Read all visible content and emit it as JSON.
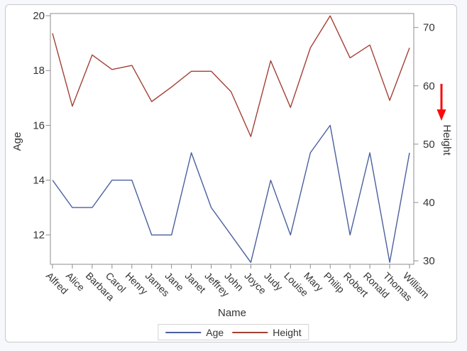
{
  "window": {
    "background_color": "#f7f8fc",
    "card_border_color": "#c9c9cb"
  },
  "text_color": "#333333",
  "axis_color": "#8e8e8e",
  "chart_data": {
    "type": "line",
    "title": "",
    "categories": [
      "Alfred",
      "Alice",
      "Barbara",
      "Carol",
      "Henry",
      "James",
      "Jane",
      "Janet",
      "Jeffrey",
      "John",
      "Joyce",
      "Judy",
      "Louise",
      "Mary",
      "Philip",
      "Robert",
      "Ronald",
      "Thomas",
      "William"
    ],
    "series": [
      {
        "name": "Age",
        "axis": "left",
        "color": "#4a5f9d",
        "values": [
          14,
          13,
          13,
          14,
          14,
          12,
          12,
          15,
          13,
          12,
          11,
          14,
          12,
          15,
          16,
          12,
          15,
          11,
          15
        ]
      },
      {
        "name": "Height",
        "axis": "right",
        "color": "#a24035",
        "values": [
          69,
          56.5,
          65.3,
          62.8,
          63.5,
          57.3,
          59.8,
          62.5,
          62.5,
          59,
          51.3,
          64.3,
          56.3,
          66.5,
          72,
          64.8,
          67,
          57.5,
          66.5
        ]
      }
    ],
    "xlabel": "Name",
    "ylabel_left": "Age",
    "ylabel_right": "Height",
    "left_axis": {
      "ticks": [
        12,
        14,
        16,
        18,
        20
      ],
      "range": [
        10.93,
        20.08
      ]
    },
    "right_axis": {
      "ticks": [
        30,
        40,
        50,
        60,
        70
      ],
      "range": [
        29.4,
        72.4
      ]
    },
    "grid": false,
    "legend": {
      "position": "bottom",
      "entries": [
        "Age",
        "Height"
      ]
    },
    "annotations": [
      {
        "type": "arrow",
        "direction": "down",
        "color": "#fa0a0a",
        "location": "right-axis-area"
      }
    ]
  }
}
